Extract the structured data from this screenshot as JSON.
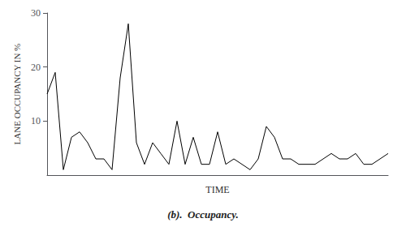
{
  "chart_data": {
    "type": "line",
    "title": "(b).  Occupancy.",
    "xlabel": "TIME",
    "ylabel": "LANE OCCUPANCY IN %",
    "x": [
      0,
      1,
      2,
      3,
      4,
      5,
      6,
      7,
      8,
      9,
      10,
      11,
      12,
      13,
      14,
      15,
      16,
      17,
      18,
      19,
      20,
      21,
      22,
      23,
      24,
      25,
      26,
      27,
      28,
      29,
      30,
      31,
      32,
      33,
      34,
      35,
      36,
      37,
      38,
      39,
      40,
      41,
      42
    ],
    "values": [
      15,
      19,
      1,
      7,
      8,
      6,
      3,
      3,
      1,
      18,
      28,
      6,
      2,
      6,
      4,
      2,
      10,
      2,
      7,
      2,
      2,
      8,
      2,
      3,
      2,
      1,
      3,
      9,
      7,
      3,
      3,
      2,
      2,
      2,
      3,
      4,
      3,
      3,
      4,
      2,
      2,
      3,
      4
    ],
    "color": "#000000",
    "xlim": [
      0,
      42
    ],
    "ylim": [
      0,
      30
    ],
    "yticks": [
      10,
      20,
      30
    ],
    "grid": false,
    "tick_labels": "y"
  }
}
